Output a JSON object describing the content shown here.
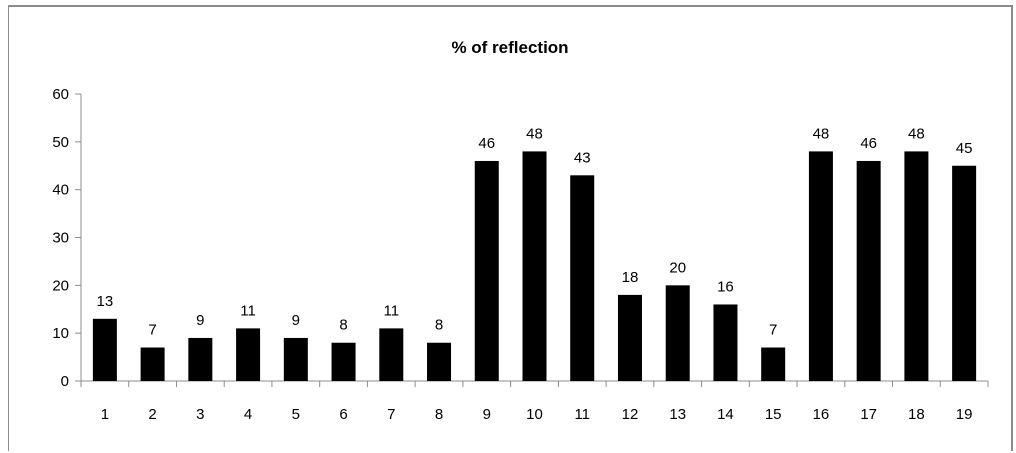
{
  "chart_data": {
    "type": "bar",
    "title": "% of reflection",
    "xlabel": "",
    "ylabel": "",
    "categories": [
      "1",
      "2",
      "3",
      "4",
      "5",
      "6",
      "7",
      "8",
      "9",
      "10",
      "11",
      "12",
      "13",
      "14",
      "15",
      "16",
      "17",
      "18",
      "19"
    ],
    "values": [
      13,
      7,
      9,
      11,
      9,
      8,
      11,
      8,
      46,
      48,
      43,
      18,
      20,
      16,
      7,
      48,
      46,
      48,
      45
    ],
    "ylim": [
      0,
      60
    ],
    "yticks": [
      0,
      10,
      20,
      30,
      40,
      50,
      60
    ],
    "grid": false,
    "legend": "none",
    "data_labels": true,
    "colors": {
      "bar": "#000000",
      "axis": "#8c8c8c",
      "frame": "#8c8c8c"
    }
  }
}
